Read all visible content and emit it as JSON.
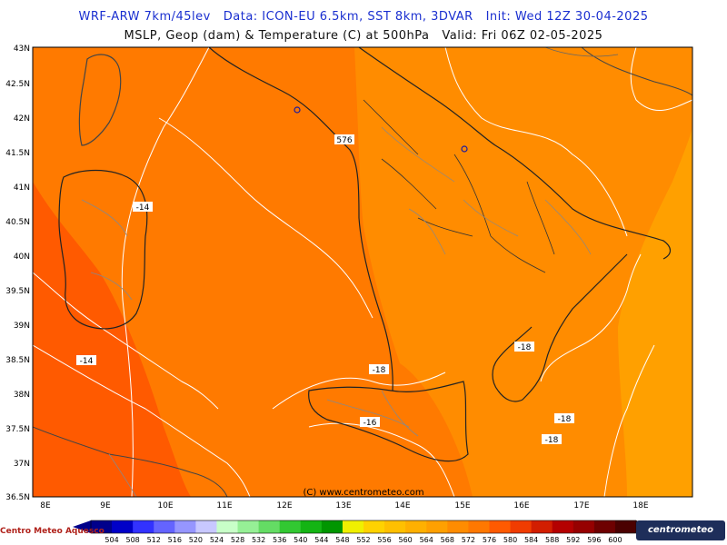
{
  "header": {
    "line1": "WRF-ARW 7km/45lev   Data: ICON-EU 6.5km, SST 8km, 3DVAR   Init: Wed 12Z 30-04-2025",
    "line2": "MSLP, Geop (dam) & Temperature (C) at 500hPa   Valid: Fri 06Z 02-05-2025"
  },
  "map": {
    "lat_labels": [
      "43N",
      "42.5N",
      "42N",
      "41.5N",
      "41N",
      "40.5N",
      "40N",
      "39.5N",
      "39N",
      "38.5N",
      "38N",
      "37.5N",
      "37N",
      "36.5N"
    ],
    "lon_labels": [
      "8E",
      "9E",
      "10E",
      "11E",
      "12E",
      "13E",
      "14E",
      "15E",
      "16E",
      "17E",
      "18E"
    ],
    "contour_labels": [
      "576",
      "-14",
      "-14",
      "-18",
      "-18",
      "-16",
      "-18",
      "-18"
    ],
    "watermark": "(C) www.centrometeo.com"
  },
  "legend": {
    "values": [
      "504",
      "508",
      "512",
      "516",
      "520",
      "524",
      "528",
      "532",
      "536",
      "540",
      "544",
      "548",
      "552",
      "556",
      "560",
      "564",
      "568",
      "572",
      "576",
      "580",
      "584",
      "588",
      "592",
      "596",
      "600"
    ],
    "colors": [
      "#00008b",
      "#0000c8",
      "#3232ff",
      "#6464ff",
      "#9696ff",
      "#c8c8ff",
      "#c8ffc8",
      "#96f096",
      "#64dc64",
      "#32c832",
      "#14b414",
      "#009600",
      "#f0f000",
      "#ffd200",
      "#ffc000",
      "#ffb000",
      "#ffa000",
      "#ff8c00",
      "#ff7800",
      "#ff5a00",
      "#f03c00",
      "#d21e00",
      "#b40000",
      "#960000",
      "#6e0000",
      "#4a0000"
    ]
  },
  "branding": {
    "left": "Centro Meteo Aquesco",
    "right": "centrometeo"
  }
}
